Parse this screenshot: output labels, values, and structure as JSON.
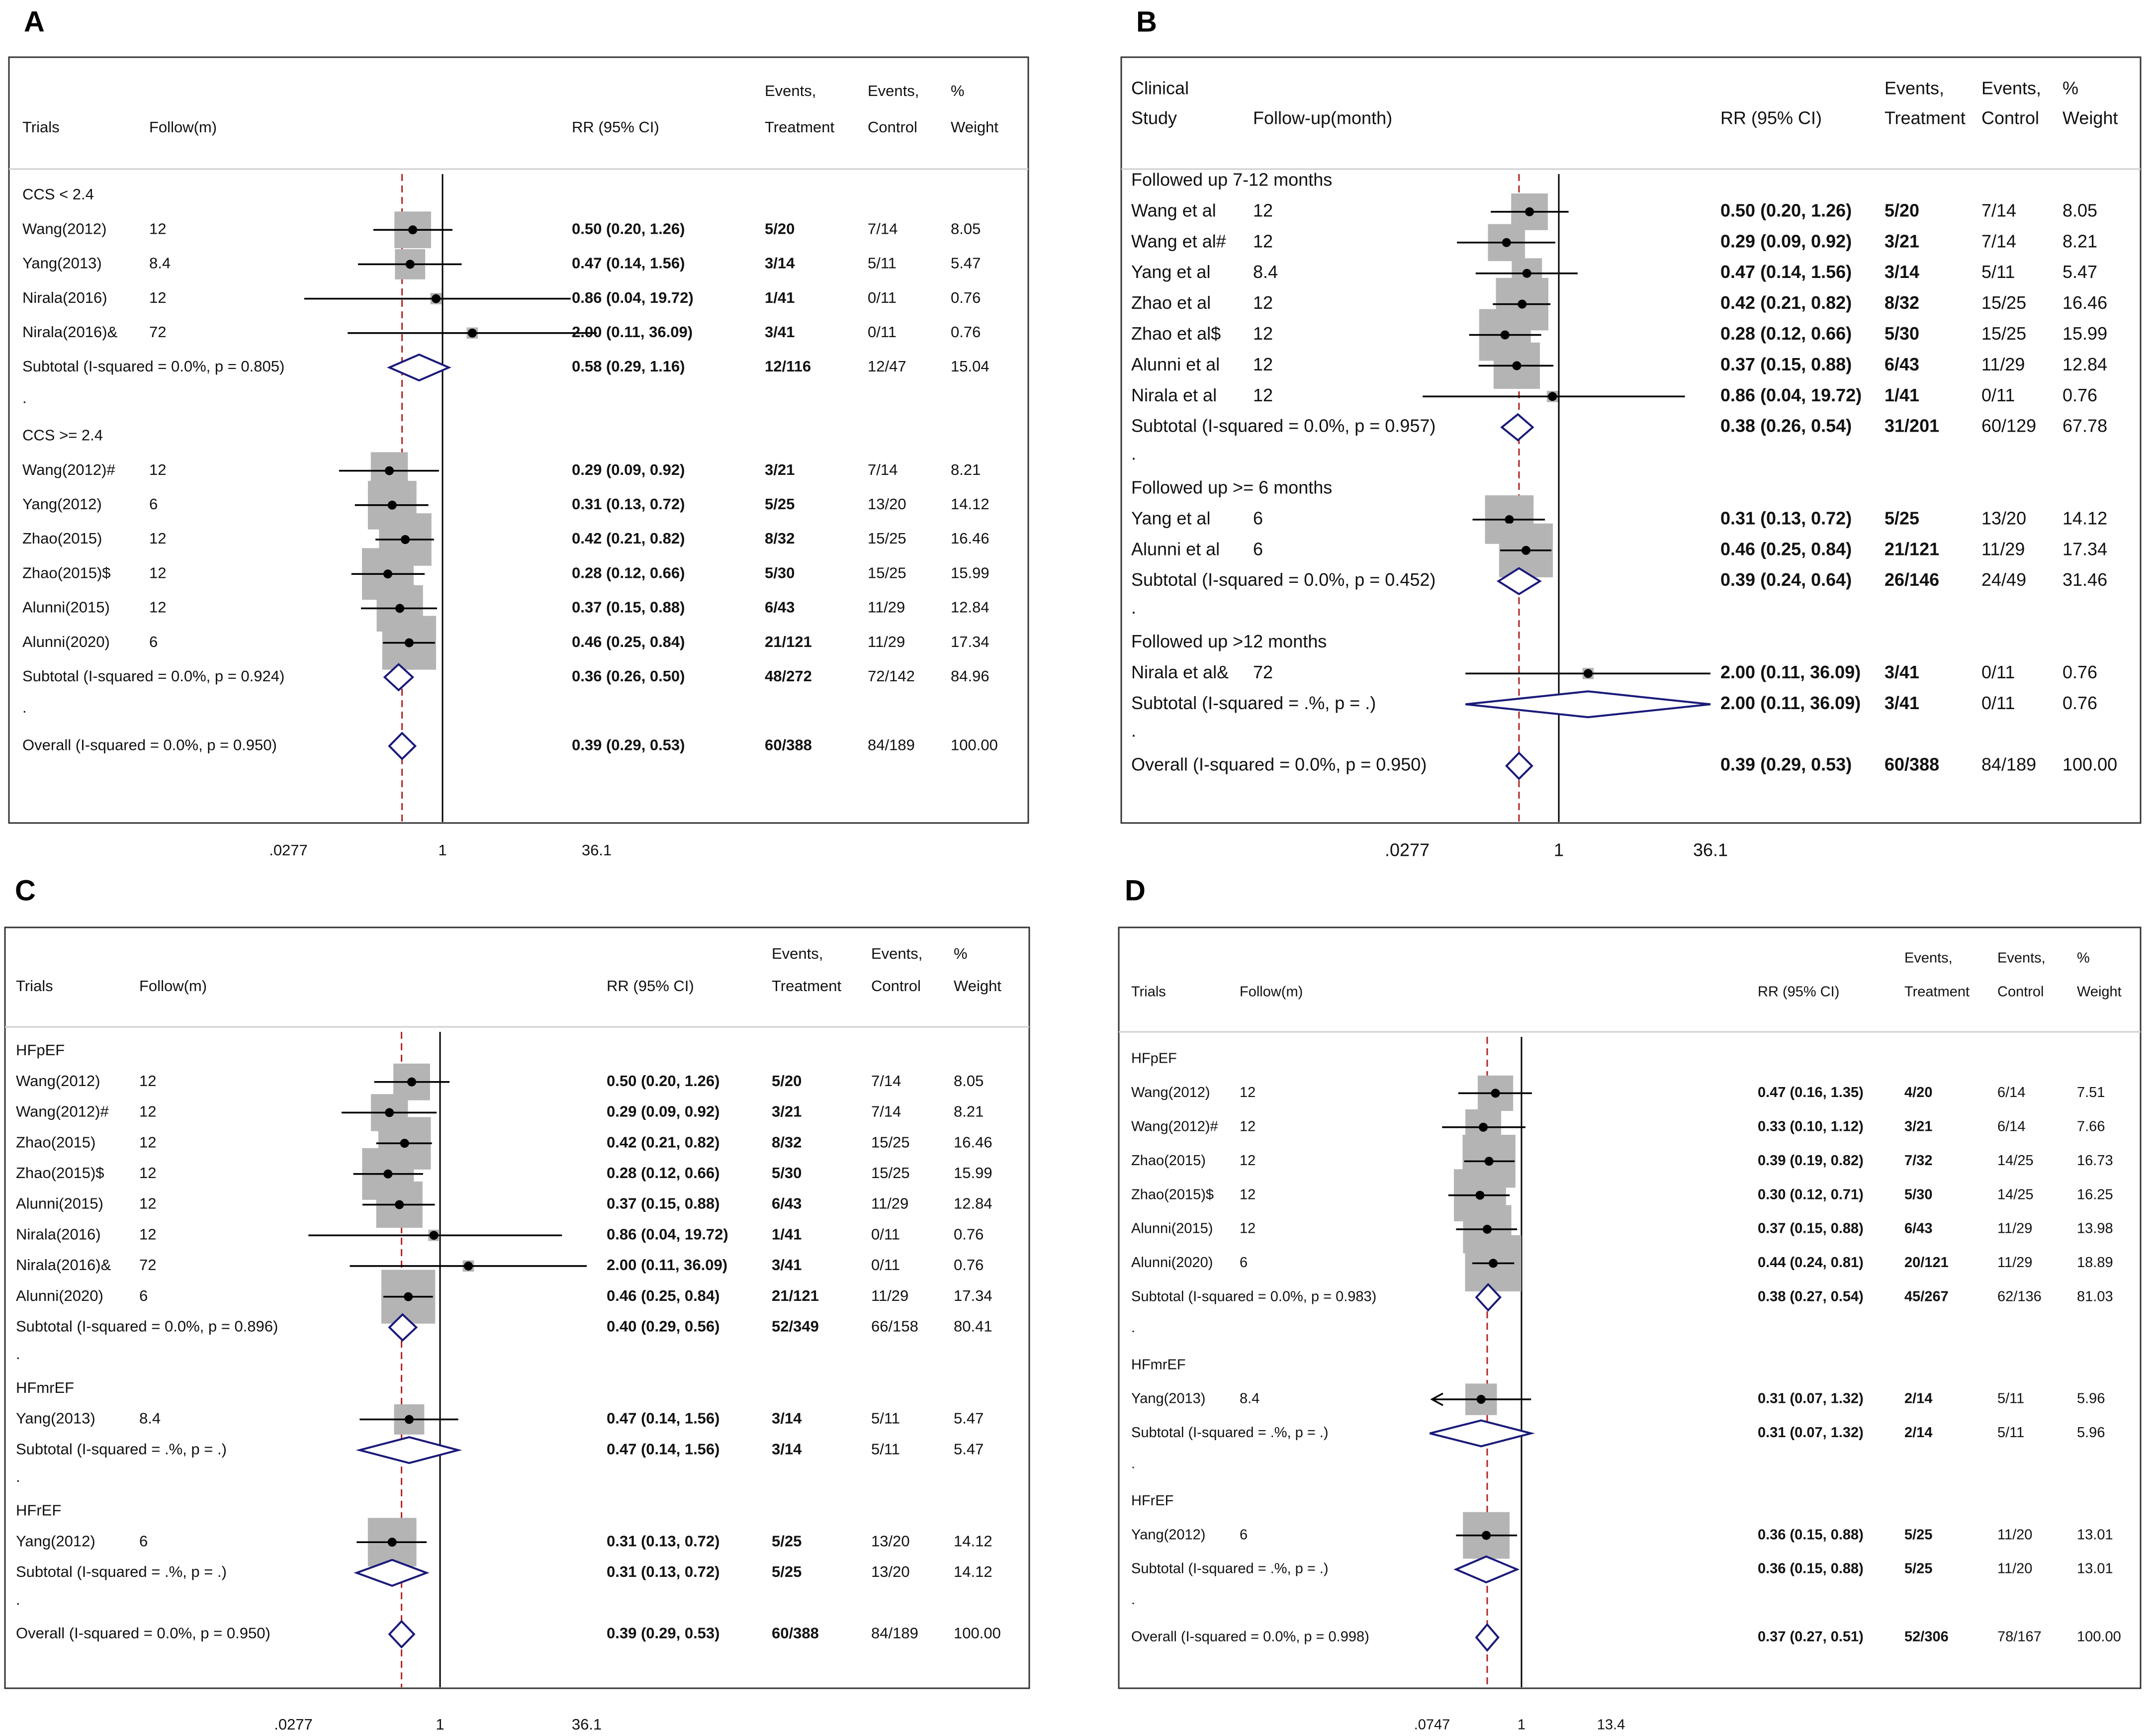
{
  "colors": {
    "frame": "#333333",
    "text": "#111111",
    "line": "#000000",
    "box": "#b4b4b4",
    "diamond": "#1a1a7a",
    "overall_line": "#b22222",
    "separator": "#cfcfcf"
  },
  "chart_data": [
    {
      "panel": "A",
      "type": "forest",
      "scale": "log",
      "null_value": 1,
      "axis_ticks": [
        0.0277,
        1,
        36.1
      ],
      "axis_tick_labels": [
        ".0277",
        "1",
        "36.1"
      ],
      "overall_rr": 0.39,
      "headers": {
        "study_top": "",
        "study": "Trials",
        "follow": "Follow(m)",
        "rr": "RR (95% CI)",
        "evt_top": "Events,",
        "evt": "Treatment",
        "ctl_top": "Events,",
        "ctl": "Control",
        "wt_top": "%",
        "wt": "Weight"
      },
      "rows": [
        {
          "kind": "group",
          "label": "CCS < 2.4"
        },
        {
          "kind": "study",
          "label": "Wang(2012)",
          "follow": "12",
          "rr": 0.5,
          "lo": 0.2,
          "hi": 1.26,
          "ci": "0.50 (0.20, 1.26)",
          "evt": "5/20",
          "ctl": "7/14",
          "wt": "8.05"
        },
        {
          "kind": "study",
          "label": "Yang(2013)",
          "follow": "8.4",
          "rr": 0.47,
          "lo": 0.14,
          "hi": 1.56,
          "ci": "0.47 (0.14, 1.56)",
          "evt": "3/14",
          "ctl": "5/11",
          "wt": "5.47"
        },
        {
          "kind": "study",
          "label": "Nirala(2016)",
          "follow": "12",
          "rr": 0.86,
          "lo": 0.04,
          "hi": 19.72,
          "ci": "0.86 (0.04, 19.72)",
          "evt": "1/41",
          "ctl": "0/11",
          "wt": "0.76"
        },
        {
          "kind": "study",
          "label": "Nirala(2016)&",
          "follow": "72",
          "rr": 2.0,
          "lo": 0.11,
          "hi": 36.09,
          "ci": "2.00 (0.11, 36.09)",
          "evt": "3/41",
          "ctl": "0/11",
          "wt": "0.76"
        },
        {
          "kind": "subtotal",
          "label": "Subtotal  (I-squared = 0.0%, p = 0.805)",
          "rr": 0.58,
          "lo": 0.29,
          "hi": 1.16,
          "ci": "0.58 (0.29, 1.16)",
          "evt": "12/116",
          "ctl": "12/47",
          "wt": "15.04"
        },
        {
          "kind": "dot",
          "label": "."
        },
        {
          "kind": "group",
          "label": "CCS >= 2.4"
        },
        {
          "kind": "study",
          "label": "Wang(2012)#",
          "follow": "12",
          "rr": 0.29,
          "lo": 0.09,
          "hi": 0.92,
          "ci": "0.29 (0.09, 0.92)",
          "evt": "3/21",
          "ctl": "7/14",
          "wt": "8.21"
        },
        {
          "kind": "study",
          "label": "Yang(2012)",
          "follow": "6",
          "rr": 0.31,
          "lo": 0.13,
          "hi": 0.72,
          "ci": "0.31 (0.13, 0.72)",
          "evt": "5/25",
          "ctl": "13/20",
          "wt": "14.12"
        },
        {
          "kind": "study",
          "label": "Zhao(2015)",
          "follow": "12",
          "rr": 0.42,
          "lo": 0.21,
          "hi": 0.82,
          "ci": "0.42 (0.21, 0.82)",
          "evt": "8/32",
          "ctl": "15/25",
          "wt": "16.46"
        },
        {
          "kind": "study",
          "label": "Zhao(2015)$",
          "follow": "12",
          "rr": 0.28,
          "lo": 0.12,
          "hi": 0.66,
          "ci": "0.28 (0.12, 0.66)",
          "evt": "5/30",
          "ctl": "15/25",
          "wt": "15.99"
        },
        {
          "kind": "study",
          "label": "Alunni(2015)",
          "follow": "12",
          "rr": 0.37,
          "lo": 0.15,
          "hi": 0.88,
          "ci": "0.37 (0.15, 0.88)",
          "evt": "6/43",
          "ctl": "11/29",
          "wt": "12.84"
        },
        {
          "kind": "study",
          "label": "Alunni(2020)",
          "follow": "6",
          "rr": 0.46,
          "lo": 0.25,
          "hi": 0.84,
          "ci": "0.46 (0.25, 0.84)",
          "evt": "21/121",
          "ctl": "11/29",
          "wt": "17.34"
        },
        {
          "kind": "subtotal",
          "label": "Subtotal  (I-squared = 0.0%, p = 0.924)",
          "rr": 0.36,
          "lo": 0.26,
          "hi": 0.5,
          "ci": "0.36 (0.26, 0.50)",
          "evt": "48/272",
          "ctl": "72/142",
          "wt": "84.96"
        },
        {
          "kind": "dot",
          "label": "."
        },
        {
          "kind": "subtotal",
          "label": "Overall  (I-squared = 0.0%, p = 0.950)",
          "rr": 0.39,
          "lo": 0.29,
          "hi": 0.53,
          "ci": "0.39 (0.29, 0.53)",
          "evt": "60/388",
          "ctl": "84/189",
          "wt": "100.00"
        }
      ]
    },
    {
      "panel": "B",
      "type": "forest",
      "scale": "log",
      "null_value": 1,
      "axis_ticks": [
        0.0277,
        1,
        36.1
      ],
      "axis_tick_labels": [
        ".0277",
        "1",
        "36.1"
      ],
      "overall_rr": 0.39,
      "headers": {
        "study_top": "Clinical",
        "study": "Study",
        "follow": "Follow-up(month)",
        "rr": "RR (95% CI)",
        "evt_top": "Events,",
        "evt": "Treatment",
        "ctl_top": "Events,",
        "ctl": "Control",
        "wt_top": "%",
        "wt": "Weight"
      },
      "rows": [
        {
          "kind": "group",
          "label": "Followed up 7-12 months"
        },
        {
          "kind": "study",
          "label": "Wang et al",
          "follow": "12",
          "rr": 0.5,
          "lo": 0.2,
          "hi": 1.26,
          "ci": "0.50 (0.20, 1.26)",
          "evt": "5/20",
          "ctl": "7/14",
          "wt": "8.05"
        },
        {
          "kind": "study",
          "label": "Wang et al#",
          "follow": "12",
          "rr": 0.29,
          "lo": 0.09,
          "hi": 0.92,
          "ci": "0.29 (0.09, 0.92)",
          "evt": "3/21",
          "ctl": "7/14",
          "wt": "8.21"
        },
        {
          "kind": "study",
          "label": "Yang et al",
          "follow": "8.4",
          "rr": 0.47,
          "lo": 0.14,
          "hi": 1.56,
          "ci": "0.47 (0.14, 1.56)",
          "evt": "3/14",
          "ctl": "5/11",
          "wt": "5.47"
        },
        {
          "kind": "study",
          "label": "Zhao et al",
          "follow": "12",
          "rr": 0.42,
          "lo": 0.21,
          "hi": 0.82,
          "ci": "0.42 (0.21, 0.82)",
          "evt": "8/32",
          "ctl": "15/25",
          "wt": "16.46"
        },
        {
          "kind": "study",
          "label": "Zhao et al$",
          "follow": "12",
          "rr": 0.28,
          "lo": 0.12,
          "hi": 0.66,
          "ci": "0.28 (0.12, 0.66)",
          "evt": "5/30",
          "ctl": "15/25",
          "wt": "15.99"
        },
        {
          "kind": "study",
          "label": "Alunni et al",
          "follow": "12",
          "rr": 0.37,
          "lo": 0.15,
          "hi": 0.88,
          "ci": "0.37 (0.15, 0.88)",
          "evt": "6/43",
          "ctl": "11/29",
          "wt": "12.84"
        },
        {
          "kind": "study",
          "label": "Nirala et al",
          "follow": "12",
          "rr": 0.86,
          "lo": 0.04,
          "hi": 19.72,
          "ci": "0.86 (0.04, 19.72)",
          "evt": "1/41",
          "ctl": "0/11",
          "wt": "0.76"
        },
        {
          "kind": "subtotal",
          "label": "Subtotal  (I-squared = 0.0%, p = 0.957)",
          "rr": 0.38,
          "lo": 0.26,
          "hi": 0.54,
          "ci": "0.38 (0.26, 0.54)",
          "evt": "31/201",
          "ctl": "60/129",
          "wt": "67.78"
        },
        {
          "kind": "dot",
          "label": "."
        },
        {
          "kind": "group",
          "label": "Followed up >= 6 months"
        },
        {
          "kind": "study",
          "label": "Yang et al",
          "follow": "6",
          "rr": 0.31,
          "lo": 0.13,
          "hi": 0.72,
          "ci": "0.31 (0.13, 0.72)",
          "evt": "5/25",
          "ctl": "13/20",
          "wt": "14.12"
        },
        {
          "kind": "study",
          "label": "Alunni et al",
          "follow": "6",
          "rr": 0.46,
          "lo": 0.25,
          "hi": 0.84,
          "ci": "0.46 (0.25, 0.84)",
          "evt": "21/121",
          "ctl": "11/29",
          "wt": "17.34"
        },
        {
          "kind": "subtotal",
          "label": "Subtotal  (I-squared = 0.0%, p = 0.452)",
          "rr": 0.39,
          "lo": 0.24,
          "hi": 0.64,
          "ci": "0.39 (0.24, 0.64)",
          "evt": "26/146",
          "ctl": "24/49",
          "wt": "31.46"
        },
        {
          "kind": "dot",
          "label": "."
        },
        {
          "kind": "group",
          "label": "Followed up >12 months"
        },
        {
          "kind": "study",
          "label": "Nirala et al&",
          "follow": "72",
          "rr": 2.0,
          "lo": 0.11,
          "hi": 36.09,
          "ci": "2.00 (0.11, 36.09)",
          "evt": "3/41",
          "ctl": "0/11",
          "wt": "0.76"
        },
        {
          "kind": "subtotal",
          "label": "Subtotal  (I-squared = .%, p = .)",
          "rr": 2.0,
          "lo": 0.11,
          "hi": 36.09,
          "ci": "2.00 (0.11, 36.09)",
          "evt": "3/41",
          "ctl": "0/11",
          "wt": "0.76"
        },
        {
          "kind": "dot",
          "label": "."
        },
        {
          "kind": "subtotal",
          "label": "Overall  (I-squared = 0.0%, p = 0.950)",
          "rr": 0.39,
          "lo": 0.29,
          "hi": 0.53,
          "ci": "0.39 (0.29, 0.53)",
          "evt": "60/388",
          "ctl": "84/189",
          "wt": "100.00"
        }
      ]
    },
    {
      "panel": "C",
      "type": "forest",
      "scale": "log",
      "null_value": 1,
      "axis_ticks": [
        0.0277,
        1,
        36.1
      ],
      "axis_tick_labels": [
        ".0277",
        "1",
        "36.1"
      ],
      "overall_rr": 0.39,
      "headers": {
        "study_top": "",
        "study": "Trials",
        "follow": "Follow(m)",
        "rr": "RR (95% CI)",
        "evt_top": "Events,",
        "evt": "Treatment",
        "ctl_top": "Events,",
        "ctl": "Control",
        "wt_top": "%",
        "wt": "Weight"
      },
      "rows": [
        {
          "kind": "group",
          "label": "HFpEF"
        },
        {
          "kind": "study",
          "label": "Wang(2012)",
          "follow": "12",
          "rr": 0.5,
          "lo": 0.2,
          "hi": 1.26,
          "ci": "0.50 (0.20, 1.26)",
          "evt": "5/20",
          "ctl": "7/14",
          "wt": "8.05"
        },
        {
          "kind": "study",
          "label": "Wang(2012)#",
          "follow": "12",
          "rr": 0.29,
          "lo": 0.09,
          "hi": 0.92,
          "ci": "0.29 (0.09, 0.92)",
          "evt": "3/21",
          "ctl": "7/14",
          "wt": "8.21"
        },
        {
          "kind": "study",
          "label": "Zhao(2015)",
          "follow": "12",
          "rr": 0.42,
          "lo": 0.21,
          "hi": 0.82,
          "ci": "0.42 (0.21, 0.82)",
          "evt": "8/32",
          "ctl": "15/25",
          "wt": "16.46"
        },
        {
          "kind": "study",
          "label": "Zhao(2015)$",
          "follow": "12",
          "rr": 0.28,
          "lo": 0.12,
          "hi": 0.66,
          "ci": "0.28 (0.12, 0.66)",
          "evt": "5/30",
          "ctl": "15/25",
          "wt": "15.99"
        },
        {
          "kind": "study",
          "label": "Alunni(2015)",
          "follow": "12",
          "rr": 0.37,
          "lo": 0.15,
          "hi": 0.88,
          "ci": "0.37 (0.15, 0.88)",
          "evt": "6/43",
          "ctl": "11/29",
          "wt": "12.84"
        },
        {
          "kind": "study",
          "label": "Nirala(2016)",
          "follow": "12",
          "rr": 0.86,
          "lo": 0.04,
          "hi": 19.72,
          "ci": "0.86 (0.04, 19.72)",
          "evt": "1/41",
          "ctl": "0/11",
          "wt": "0.76"
        },
        {
          "kind": "study",
          "label": "Nirala(2016)&",
          "follow": "72",
          "rr": 2.0,
          "lo": 0.11,
          "hi": 36.09,
          "ci": "2.00 (0.11, 36.09)",
          "evt": "3/41",
          "ctl": "0/11",
          "wt": "0.76"
        },
        {
          "kind": "study",
          "label": "Alunni(2020)",
          "follow": "6",
          "rr": 0.46,
          "lo": 0.25,
          "hi": 0.84,
          "ci": "0.46 (0.25, 0.84)",
          "evt": "21/121",
          "ctl": "11/29",
          "wt": "17.34"
        },
        {
          "kind": "subtotal",
          "label": "Subtotal  (I-squared = 0.0%, p = 0.896)",
          "rr": 0.4,
          "lo": 0.29,
          "hi": 0.56,
          "ci": "0.40 (0.29, 0.56)",
          "evt": "52/349",
          "ctl": "66/158",
          "wt": "80.41"
        },
        {
          "kind": "dot",
          "label": "."
        },
        {
          "kind": "group",
          "label": "HFmrEF"
        },
        {
          "kind": "study",
          "label": "Yang(2013)",
          "follow": "8.4",
          "rr": 0.47,
          "lo": 0.14,
          "hi": 1.56,
          "ci": "0.47 (0.14, 1.56)",
          "evt": "3/14",
          "ctl": "5/11",
          "wt": "5.47"
        },
        {
          "kind": "subtotal",
          "label": "Subtotal  (I-squared = .%, p = .)",
          "rr": 0.47,
          "lo": 0.14,
          "hi": 1.56,
          "ci": "0.47 (0.14, 1.56)",
          "evt": "3/14",
          "ctl": "5/11",
          "wt": "5.47"
        },
        {
          "kind": "dot",
          "label": "."
        },
        {
          "kind": "group",
          "label": "HFrEF"
        },
        {
          "kind": "study",
          "label": "Yang(2012)",
          "follow": "6",
          "rr": 0.31,
          "lo": 0.13,
          "hi": 0.72,
          "ci": "0.31 (0.13, 0.72)",
          "evt": "5/25",
          "ctl": "13/20",
          "wt": "14.12"
        },
        {
          "kind": "subtotal",
          "label": "Subtotal  (I-squared = .%, p = .)",
          "rr": 0.31,
          "lo": 0.13,
          "hi": 0.72,
          "ci": "0.31 (0.13, 0.72)",
          "evt": "5/25",
          "ctl": "13/20",
          "wt": "14.12"
        },
        {
          "kind": "dot",
          "label": "."
        },
        {
          "kind": "subtotal",
          "label": "Overall  (I-squared = 0.0%, p = 0.950)",
          "rr": 0.39,
          "lo": 0.29,
          "hi": 0.53,
          "ci": "0.39 (0.29, 0.53)",
          "evt": "60/388",
          "ctl": "84/189",
          "wt": "100.00"
        }
      ]
    },
    {
      "panel": "D",
      "type": "forest",
      "scale": "log",
      "null_value": 1,
      "axis_ticks": [
        0.0747,
        1,
        13.4
      ],
      "axis_tick_labels": [
        ".0747",
        "1",
        "13.4"
      ],
      "overall_rr": 0.37,
      "headers": {
        "study_top": "",
        "study": "Trials",
        "follow": "Follow(m)",
        "rr": "RR (95% CI)",
        "evt_top": "Events,",
        "evt": "Treatment",
        "ctl_top": "Events,",
        "ctl": "Control",
        "wt_top": "%",
        "wt": "Weight"
      },
      "rows": [
        {
          "kind": "group",
          "label": "HFpEF"
        },
        {
          "kind": "study",
          "label": "Wang(2012)",
          "follow": "12",
          "rr": 0.47,
          "lo": 0.16,
          "hi": 1.35,
          "ci": "0.47 (0.16, 1.35)",
          "evt": "4/20",
          "ctl": "6/14",
          "wt": "7.51"
        },
        {
          "kind": "study",
          "label": "Wang(2012)#",
          "follow": "12",
          "rr": 0.33,
          "lo": 0.1,
          "hi": 1.12,
          "ci": "0.33 (0.10, 1.12)",
          "evt": "3/21",
          "ctl": "6/14",
          "wt": "7.66"
        },
        {
          "kind": "study",
          "label": "Zhao(2015)",
          "follow": "12",
          "rr": 0.39,
          "lo": 0.19,
          "hi": 0.82,
          "ci": "0.39 (0.19, 0.82)",
          "evt": "7/32",
          "ctl": "14/25",
          "wt": "16.73"
        },
        {
          "kind": "study",
          "label": "Zhao(2015)$",
          "follow": "12",
          "rr": 0.3,
          "lo": 0.12,
          "hi": 0.71,
          "ci": "0.30 (0.12, 0.71)",
          "evt": "5/30",
          "ctl": "14/25",
          "wt": "16.25"
        },
        {
          "kind": "study",
          "label": "Alunni(2015)",
          "follow": "12",
          "rr": 0.37,
          "lo": 0.15,
          "hi": 0.88,
          "ci": "0.37 (0.15, 0.88)",
          "evt": "6/43",
          "ctl": "11/29",
          "wt": "13.98"
        },
        {
          "kind": "study",
          "label": "Alunni(2020)",
          "follow": "6",
          "rr": 0.44,
          "lo": 0.24,
          "hi": 0.81,
          "ci": "0.44 (0.24, 0.81)",
          "evt": "20/121",
          "ctl": "11/29",
          "wt": "18.89"
        },
        {
          "kind": "subtotal",
          "label": "Subtotal  (I-squared = 0.0%, p = 0.983)",
          "rr": 0.38,
          "lo": 0.27,
          "hi": 0.54,
          "ci": "0.38 (0.27, 0.54)",
          "evt": "45/267",
          "ctl": "62/136",
          "wt": "81.03"
        },
        {
          "kind": "dot",
          "label": "."
        },
        {
          "kind": "group",
          "label": "HFmrEF"
        },
        {
          "kind": "study",
          "label": "Yang(2013)",
          "follow": "8.4",
          "rr": 0.31,
          "lo": 0.07,
          "hi": 1.32,
          "ci": "0.31 (0.07, 1.32)",
          "evt": "2/14",
          "ctl": "5/11",
          "wt": "5.96"
        },
        {
          "kind": "subtotal",
          "label": "Subtotal  (I-squared = .%, p = .)",
          "rr": 0.31,
          "lo": 0.07,
          "hi": 1.32,
          "ci": "0.31 (0.07, 1.32)",
          "evt": "2/14",
          "ctl": "5/11",
          "wt": "5.96"
        },
        {
          "kind": "dot",
          "label": "."
        },
        {
          "kind": "group",
          "label": "HFrEF"
        },
        {
          "kind": "study",
          "label": "Yang(2012)",
          "follow": "6",
          "rr": 0.36,
          "lo": 0.15,
          "hi": 0.88,
          "ci": "0.36 (0.15, 0.88)",
          "evt": "5/25",
          "ctl": "11/20",
          "wt": "13.01"
        },
        {
          "kind": "subtotal",
          "label": "Subtotal  (I-squared = .%, p = .)",
          "rr": 0.36,
          "lo": 0.15,
          "hi": 0.88,
          "ci": "0.36 (0.15, 0.88)",
          "evt": "5/25",
          "ctl": "11/20",
          "wt": "13.01"
        },
        {
          "kind": "dot",
          "label": "."
        },
        {
          "kind": "subtotal",
          "label": "Overall  (I-squared = 0.0%, p = 0.998)",
          "rr": 0.37,
          "lo": 0.27,
          "hi": 0.51,
          "ci": "0.37 (0.27, 0.51)",
          "evt": "52/306",
          "ctl": "78/167",
          "wt": "100.00"
        }
      ]
    }
  ]
}
